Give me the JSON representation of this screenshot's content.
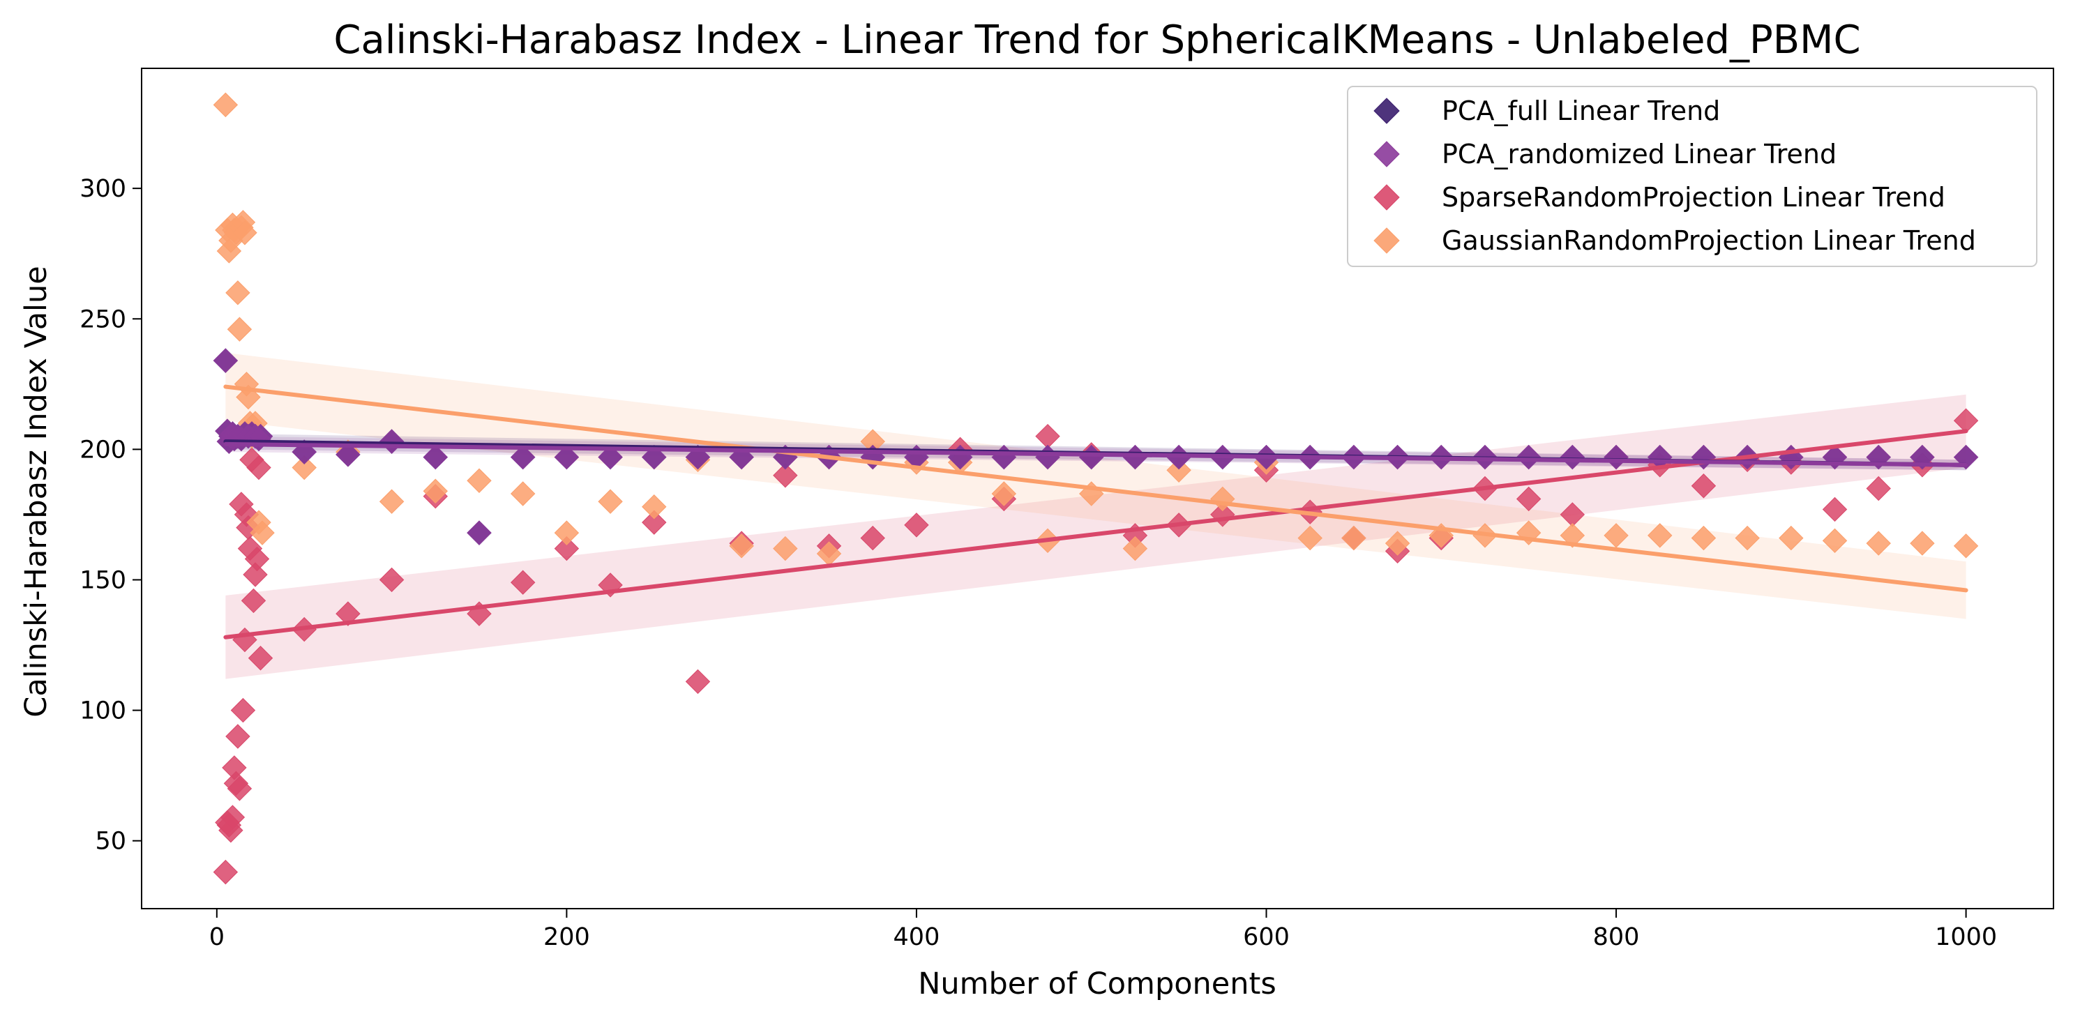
{
  "chart_data": {
    "type": "scatter",
    "title": "Calinski-Harabasz Index - Linear Trend for SphericalKMeans - Unlabeled_PBMC",
    "xlabel": "Number of Components",
    "ylabel": "Calinski-Harabasz Index Value",
    "xlim": [
      -43,
      1050
    ],
    "ylim": [
      24,
      346
    ],
    "xticks": [
      0,
      200,
      400,
      600,
      800,
      1000
    ],
    "yticks": [
      50,
      100,
      150,
      200,
      250,
      300
    ],
    "grid": false,
    "legend_position": "top-right",
    "series": [
      {
        "name": "PCA_full Linear Trend",
        "color": "#3b1e6e",
        "points": [
          [
            5,
            234
          ],
          [
            6,
            207
          ],
          [
            7,
            203
          ],
          [
            8,
            205
          ],
          [
            9,
            206
          ],
          [
            10,
            204
          ],
          [
            12,
            205
          ],
          [
            14,
            204
          ],
          [
            16,
            206
          ],
          [
            18,
            205
          ],
          [
            20,
            206
          ],
          [
            22,
            205
          ],
          [
            24,
            204
          ],
          [
            25,
            205
          ],
          [
            50,
            199
          ],
          [
            75,
            198
          ],
          [
            100,
            203
          ],
          [
            125,
            197
          ],
          [
            150,
            168
          ],
          [
            175,
            197
          ],
          [
            200,
            197
          ],
          [
            225,
            197
          ],
          [
            250,
            197
          ],
          [
            275,
            197
          ],
          [
            300,
            197
          ],
          [
            325,
            197
          ],
          [
            350,
            197
          ],
          [
            375,
            197
          ],
          [
            400,
            197
          ],
          [
            425,
            197
          ],
          [
            450,
            197
          ],
          [
            475,
            197
          ],
          [
            500,
            197
          ],
          [
            525,
            197
          ],
          [
            550,
            197
          ],
          [
            575,
            197
          ],
          [
            600,
            197
          ],
          [
            625,
            197
          ],
          [
            650,
            197
          ],
          [
            675,
            197
          ],
          [
            700,
            197
          ],
          [
            725,
            197
          ],
          [
            750,
            197
          ],
          [
            775,
            197
          ],
          [
            800,
            197
          ],
          [
            825,
            197
          ],
          [
            850,
            197
          ],
          [
            875,
            197
          ],
          [
            900,
            197
          ],
          [
            925,
            197
          ],
          [
            950,
            197
          ],
          [
            975,
            197
          ],
          [
            1000,
            197
          ]
        ],
        "trend": {
          "start": [
            5,
            203
          ],
          "end": [
            1000,
            194
          ],
          "ci_halfwidth": [
            3,
            2
          ]
        }
      },
      {
        "name": "PCA_randomized Linear Trend",
        "color": "#8b3a9a",
        "points": [
          [
            5,
            234
          ],
          [
            6,
            207
          ],
          [
            7,
            203
          ],
          [
            8,
            205
          ],
          [
            9,
            206
          ],
          [
            10,
            204
          ],
          [
            12,
            205
          ],
          [
            14,
            204
          ],
          [
            16,
            206
          ],
          [
            18,
            205
          ],
          [
            20,
            206
          ],
          [
            22,
            205
          ],
          [
            24,
            204
          ],
          [
            25,
            205
          ],
          [
            50,
            199
          ],
          [
            75,
            198
          ],
          [
            100,
            203
          ],
          [
            125,
            197
          ],
          [
            150,
            168
          ],
          [
            175,
            197
          ],
          [
            200,
            197
          ],
          [
            225,
            197
          ],
          [
            250,
            197
          ],
          [
            275,
            197
          ],
          [
            300,
            197
          ],
          [
            325,
            197
          ],
          [
            350,
            197
          ],
          [
            375,
            197
          ],
          [
            400,
            197
          ],
          [
            425,
            197
          ],
          [
            450,
            197
          ],
          [
            475,
            197
          ],
          [
            500,
            197
          ],
          [
            525,
            197
          ],
          [
            550,
            197
          ],
          [
            575,
            197
          ],
          [
            600,
            197
          ],
          [
            625,
            197
          ],
          [
            650,
            197
          ],
          [
            675,
            197
          ],
          [
            700,
            197
          ],
          [
            725,
            197
          ],
          [
            750,
            197
          ],
          [
            775,
            197
          ],
          [
            800,
            197
          ],
          [
            825,
            197
          ],
          [
            850,
            197
          ],
          [
            875,
            197
          ],
          [
            900,
            197
          ],
          [
            925,
            197
          ],
          [
            950,
            197
          ],
          [
            975,
            197
          ],
          [
            1000,
            197
          ]
        ],
        "trend": {
          "start": [
            5,
            202
          ],
          "end": [
            1000,
            194
          ],
          "ci_halfwidth": [
            3,
            2
          ]
        }
      },
      {
        "name": "SparseRandomProjection Linear Trend",
        "color": "#d9476a",
        "points": [
          [
            5,
            38
          ],
          [
            6,
            57
          ],
          [
            7,
            56
          ],
          [
            8,
            54
          ],
          [
            9,
            59
          ],
          [
            10,
            78
          ],
          [
            11,
            72
          ],
          [
            12,
            90
          ],
          [
            13,
            70
          ],
          [
            14,
            179
          ],
          [
            15,
            100
          ],
          [
            16,
            127
          ],
          [
            17,
            175
          ],
          [
            18,
            170
          ],
          [
            19,
            162
          ],
          [
            20,
            196
          ],
          [
            21,
            142
          ],
          [
            22,
            152
          ],
          [
            23,
            158
          ],
          [
            24,
            193
          ],
          [
            25,
            120
          ],
          [
            50,
            131
          ],
          [
            75,
            137
          ],
          [
            100,
            150
          ],
          [
            125,
            182
          ],
          [
            150,
            137
          ],
          [
            175,
            149
          ],
          [
            200,
            162
          ],
          [
            225,
            148
          ],
          [
            250,
            172
          ],
          [
            275,
            111
          ],
          [
            300,
            164
          ],
          [
            325,
            190
          ],
          [
            350,
            163
          ],
          [
            375,
            166
          ],
          [
            400,
            171
          ],
          [
            425,
            200
          ],
          [
            450,
            181
          ],
          [
            475,
            205
          ],
          [
            500,
            198
          ],
          [
            525,
            167
          ],
          [
            550,
            171
          ],
          [
            575,
            175
          ],
          [
            600,
            192
          ],
          [
            625,
            176
          ],
          [
            650,
            166
          ],
          [
            675,
            161
          ],
          [
            700,
            166
          ],
          [
            725,
            185
          ],
          [
            750,
            181
          ],
          [
            775,
            175
          ],
          [
            800,
            197
          ],
          [
            825,
            194
          ],
          [
            850,
            186
          ],
          [
            875,
            196
          ],
          [
            900,
            195
          ],
          [
            925,
            177
          ],
          [
            950,
            185
          ],
          [
            975,
            194
          ],
          [
            1000,
            211
          ]
        ],
        "trend": {
          "start": [
            5,
            128
          ],
          "end": [
            1000,
            207
          ],
          "ci_halfwidth": [
            16,
            14
          ]
        }
      },
      {
        "name": "GaussianRandomProjection Linear Trend",
        "color": "#fb9f6b",
        "points": [
          [
            5,
            332
          ],
          [
            6,
            284
          ],
          [
            7,
            276
          ],
          [
            8,
            280
          ],
          [
            9,
            286
          ],
          [
            10,
            284
          ],
          [
            11,
            283
          ],
          [
            12,
            260
          ],
          [
            13,
            246
          ],
          [
            14,
            285
          ],
          [
            15,
            287
          ],
          [
            16,
            283
          ],
          [
            17,
            225
          ],
          [
            18,
            220
          ],
          [
            19,
            210
          ],
          [
            20,
            205
          ],
          [
            22,
            210
          ],
          [
            24,
            172
          ],
          [
            26,
            168
          ],
          [
            50,
            193
          ],
          [
            75,
            199
          ],
          [
            100,
            180
          ],
          [
            125,
            184
          ],
          [
            150,
            188
          ],
          [
            175,
            183
          ],
          [
            200,
            168
          ],
          [
            225,
            180
          ],
          [
            250,
            178
          ],
          [
            275,
            196
          ],
          [
            300,
            163
          ],
          [
            325,
            162
          ],
          [
            350,
            160
          ],
          [
            375,
            203
          ],
          [
            400,
            195
          ],
          [
            425,
            195
          ],
          [
            450,
            183
          ],
          [
            475,
            165
          ],
          [
            500,
            183
          ],
          [
            525,
            162
          ],
          [
            550,
            192
          ],
          [
            575,
            181
          ],
          [
            600,
            195
          ],
          [
            625,
            166
          ],
          [
            650,
            166
          ],
          [
            675,
            164
          ],
          [
            700,
            167
          ],
          [
            725,
            167
          ],
          [
            750,
            168
          ],
          [
            775,
            167
          ],
          [
            800,
            167
          ],
          [
            825,
            167
          ],
          [
            850,
            166
          ],
          [
            875,
            166
          ],
          [
            900,
            166
          ],
          [
            925,
            165
          ],
          [
            950,
            164
          ],
          [
            975,
            164
          ],
          [
            1000,
            163
          ]
        ],
        "trend": {
          "start": [
            5,
            224
          ],
          "end": [
            1000,
            146
          ],
          "ci_halfwidth": [
            13,
            11
          ]
        }
      }
    ]
  }
}
